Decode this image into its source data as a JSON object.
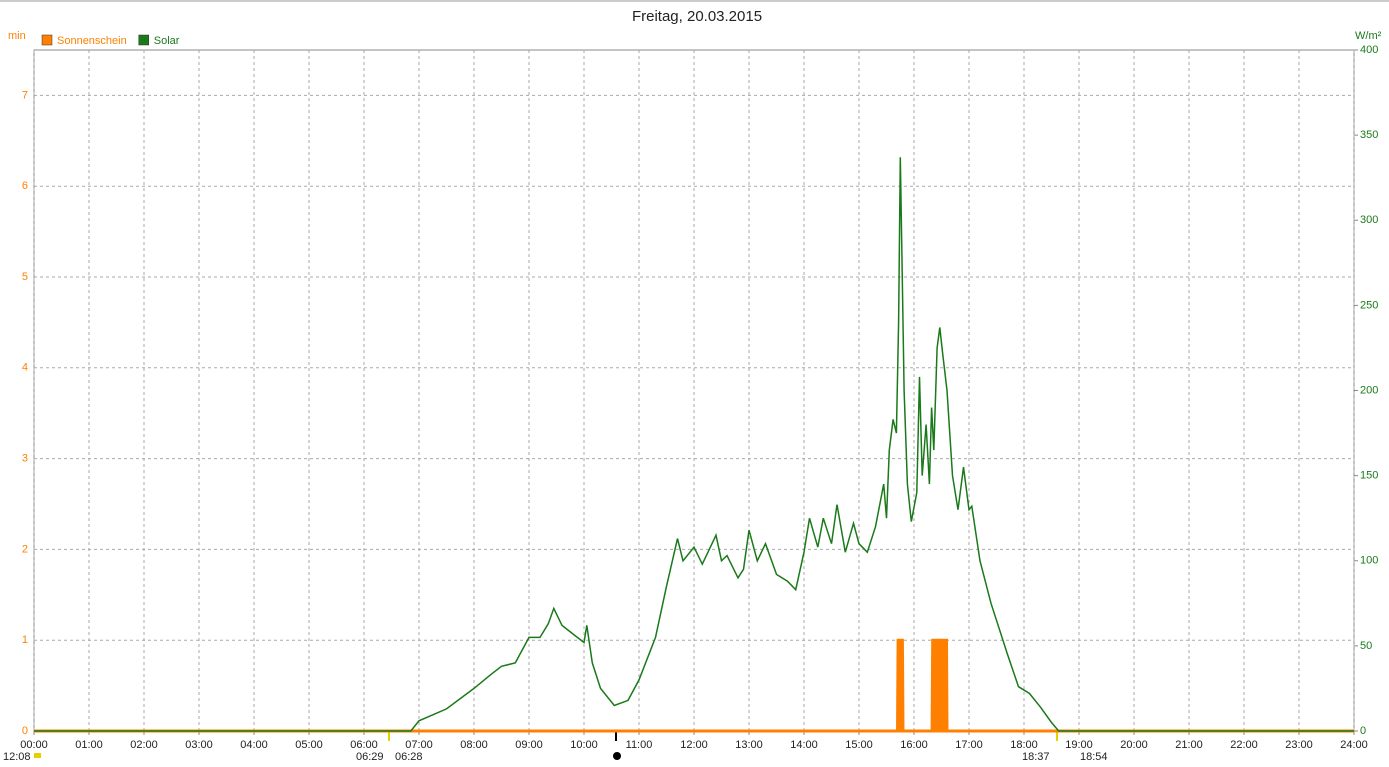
{
  "chart_data": {
    "type": "line",
    "title": "Freitag, 20.03.2015",
    "y_label": "min",
    "y2_label": "W/m²",
    "xlim": [
      0,
      24
    ],
    "xticks": [
      {
        "value": 0,
        "label": "00:00"
      },
      {
        "value": 1,
        "label": "01:00"
      },
      {
        "value": 2,
        "label": "02:00"
      },
      {
        "value": 3,
        "label": "03:00"
      },
      {
        "value": 4,
        "label": "04:00"
      },
      {
        "value": 5,
        "label": "05:00"
      },
      {
        "value": 6,
        "label": "06:00"
      },
      {
        "value": 7,
        "label": "07:00"
      },
      {
        "value": 8,
        "label": "08:00"
      },
      {
        "value": 9,
        "label": "09:00"
      },
      {
        "value": 10,
        "label": "10:00"
      },
      {
        "value": 11,
        "label": "11:00"
      },
      {
        "value": 12,
        "label": "12:00"
      },
      {
        "value": 13,
        "label": "13:00"
      },
      {
        "value": 14,
        "label": "14:00"
      },
      {
        "value": 15,
        "label": "15:00"
      },
      {
        "value": 16,
        "label": "16:00"
      },
      {
        "value": 17,
        "label": "17:00"
      },
      {
        "value": 18,
        "label": "18:00"
      },
      {
        "value": 19,
        "label": "19:00"
      },
      {
        "value": 20,
        "label": "20:00"
      },
      {
        "value": 21,
        "label": "21:00"
      },
      {
        "value": 22,
        "label": "22:00"
      },
      {
        "value": 23,
        "label": "23:00"
      },
      {
        "value": 24,
        "label": "24:00"
      }
    ],
    "ylim": [
      0,
      7.5
    ],
    "yticks": [
      0,
      1,
      2,
      3,
      4,
      5,
      6,
      7
    ],
    "y2lim": [
      0,
      400
    ],
    "y2ticks": [
      0,
      50,
      100,
      150,
      200,
      250,
      300,
      350,
      400
    ],
    "grid": true,
    "series": [
      {
        "name": "Sonnenschein",
        "color": "#ff8000",
        "axis": "y",
        "style": "area",
        "x": [
          0,
          15.7,
          15.71,
          15.79,
          15.8,
          16.33,
          16.34,
          16.59,
          16.6,
          24
        ],
        "values": [
          0,
          0,
          1,
          1,
          0,
          0,
          1,
          1,
          0,
          0
        ]
      },
      {
        "name": "Solar",
        "color": "#1a7a1a",
        "axis": "y2",
        "style": "line",
        "x": [
          0,
          6.85,
          7.0,
          7.5,
          8.0,
          8.3,
          8.5,
          8.75,
          9.0,
          9.2,
          9.35,
          9.45,
          9.6,
          9.8,
          10.0,
          10.05,
          10.15,
          10.3,
          10.55,
          10.8,
          11.0,
          11.3,
          11.5,
          11.7,
          11.8,
          12.0,
          12.15,
          12.4,
          12.5,
          12.6,
          12.8,
          12.9,
          13.0,
          13.15,
          13.3,
          13.5,
          13.7,
          13.85,
          14.0,
          14.1,
          14.25,
          14.35,
          14.5,
          14.6,
          14.75,
          14.9,
          15.0,
          15.15,
          15.3,
          15.45,
          15.5,
          15.55,
          15.62,
          15.68,
          15.72,
          15.75,
          15.78,
          15.82,
          15.88,
          15.95,
          16.05,
          16.1,
          16.15,
          16.22,
          16.28,
          16.32,
          16.36,
          16.42,
          16.47,
          16.52,
          16.6,
          16.7,
          16.8,
          16.9,
          17.0,
          17.05,
          17.2,
          17.4,
          17.5,
          17.7,
          17.9,
          18.1,
          18.3,
          18.5,
          18.63,
          24
        ],
        "values": [
          0,
          0,
          6,
          13,
          25,
          33,
          38,
          40,
          55,
          55,
          63,
          72,
          62,
          57,
          52,
          62,
          40,
          25,
          15,
          18,
          30,
          55,
          85,
          113,
          100,
          108,
          98,
          115,
          100,
          103,
          90,
          95,
          118,
          100,
          110,
          92,
          88,
          83,
          105,
          125,
          108,
          125,
          110,
          133,
          105,
          122,
          110,
          105,
          120,
          145,
          125,
          165,
          183,
          175,
          240,
          337,
          280,
          200,
          145,
          123,
          140,
          208,
          150,
          180,
          145,
          190,
          165,
          225,
          237,
          222,
          200,
          150,
          130,
          155,
          130,
          132,
          100,
          75,
          65,
          45,
          26,
          22,
          14,
          5,
          0,
          0
        ]
      }
    ],
    "annotations": [
      "12:08",
      "06:29",
      "06:28",
      "18:37",
      "18:54"
    ]
  }
}
